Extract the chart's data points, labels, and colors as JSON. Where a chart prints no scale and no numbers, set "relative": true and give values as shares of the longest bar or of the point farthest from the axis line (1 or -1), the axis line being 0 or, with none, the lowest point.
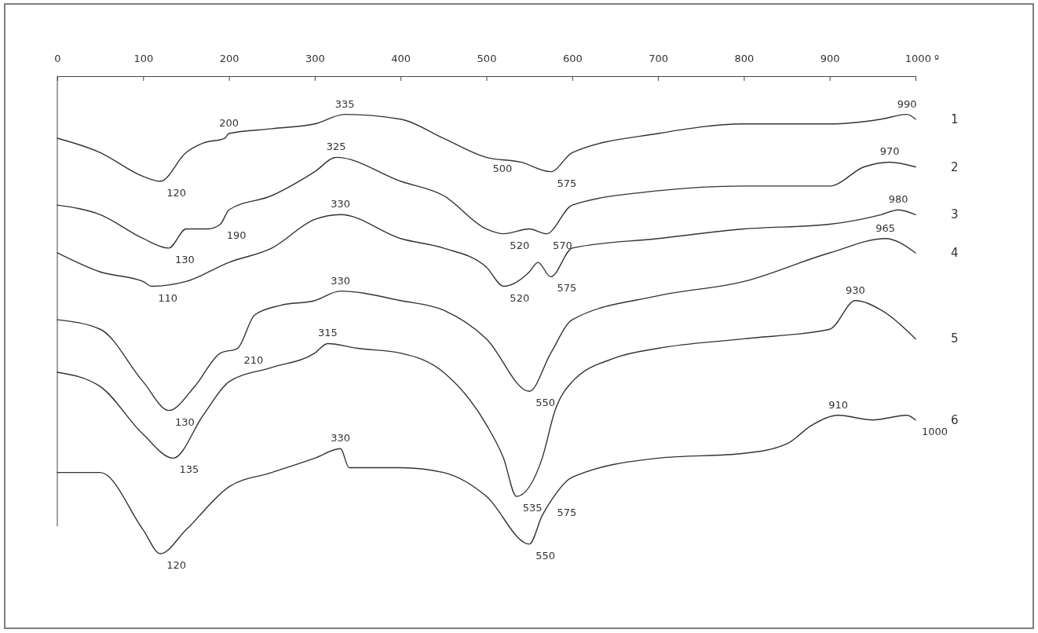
{
  "chart_data": {
    "type": "line",
    "relative": true,
    "xlim": [
      0,
      1000
    ],
    "xticks": [
      0,
      100,
      200,
      300,
      400,
      500,
      600,
      700,
      800,
      900,
      {
        "value": 1000,
        "label": "1000 º"
      }
    ],
    "series": [
      {
        "name": "1",
        "color": "#333333",
        "x": [
          0,
          50,
          100,
          120,
          150,
          170,
          195,
          200,
          250,
          300,
          335,
          400,
          450,
          500,
          540,
          575,
          600,
          700,
          800,
          900,
          960,
          990,
          1000
        ],
        "values": [
          -0.13,
          -0.16,
          -0.21,
          -0.22,
          -0.16,
          -0.14,
          -0.13,
          -0.12,
          -0.11,
          -0.1,
          -0.08,
          -0.09,
          -0.13,
          -0.17,
          -0.18,
          -0.2,
          -0.16,
          -0.12,
          -0.1,
          -0.1,
          -0.09,
          -0.08,
          -0.09
        ]
      },
      {
        "name": "2",
        "color": "#333333",
        "x": [
          0,
          50,
          100,
          130,
          150,
          175,
          190,
          200,
          250,
          300,
          325,
          400,
          450,
          500,
          520,
          550,
          570,
          600,
          700,
          800,
          900,
          940,
          970,
          1000
        ],
        "values": [
          -0.27,
          -0.29,
          -0.34,
          -0.36,
          -0.32,
          -0.32,
          -0.31,
          -0.28,
          -0.25,
          -0.2,
          -0.17,
          -0.22,
          -0.25,
          -0.32,
          -0.33,
          -0.32,
          -0.33,
          -0.27,
          -0.24,
          -0.23,
          -0.23,
          -0.19,
          -0.18,
          -0.19
        ]
      },
      {
        "name": "3",
        "color": "#333333",
        "x": [
          0,
          50,
          100,
          110,
          150,
          200,
          250,
          300,
          330,
          400,
          450,
          500,
          520,
          550,
          560,
          575,
          600,
          700,
          800,
          900,
          960,
          980,
          1000
        ],
        "values": [
          -0.37,
          -0.41,
          -0.43,
          -0.44,
          -0.43,
          -0.39,
          -0.36,
          -0.3,
          -0.29,
          -0.34,
          -0.36,
          -0.4,
          -0.44,
          -0.41,
          -0.39,
          -0.42,
          -0.36,
          -0.34,
          -0.32,
          -0.31,
          -0.29,
          -0.28,
          -0.29
        ]
      },
      {
        "name": "4",
        "color": "#333333",
        "x": [
          0,
          50,
          100,
          130,
          160,
          190,
          210,
          230,
          260,
          300,
          330,
          400,
          450,
          500,
          550,
          575,
          600,
          700,
          800,
          900,
          965,
          1000
        ],
        "values": [
          -0.51,
          -0.53,
          -0.64,
          -0.7,
          -0.65,
          -0.58,
          -0.57,
          -0.5,
          -0.48,
          -0.47,
          -0.45,
          -0.47,
          -0.49,
          -0.55,
          -0.66,
          -0.58,
          -0.51,
          -0.46,
          -0.43,
          -0.37,
          -0.34,
          -0.37
        ]
      },
      {
        "name": "5",
        "color": "#333333",
        "x": [
          0,
          50,
          100,
          135,
          170,
          200,
          250,
          300,
          315,
          350,
          400,
          450,
          500,
          520,
          535,
          565,
          580,
          600,
          650,
          700,
          800,
          900,
          930,
          960,
          1000
        ],
        "values": [
          -0.62,
          -0.65,
          -0.75,
          -0.8,
          -0.71,
          -0.64,
          -0.61,
          -0.58,
          -0.56,
          -0.57,
          -0.58,
          -0.62,
          -0.73,
          -0.8,
          -0.88,
          -0.8,
          -0.7,
          -0.64,
          -0.59,
          -0.57,
          -0.55,
          -0.53,
          -0.47,
          -0.49,
          -0.55
        ]
      },
      {
        "name": "6",
        "color": "#333333",
        "x": [
          0,
          50,
          100,
          120,
          150,
          200,
          250,
          300,
          330,
          340,
          370,
          400,
          450,
          500,
          550,
          565,
          575,
          600,
          700,
          800,
          850,
          880,
          910,
          950,
          990,
          1000
        ],
        "values": [
          -0.83,
          -0.83,
          -0.95,
          -1,
          -0.95,
          -0.86,
          -0.83,
          -0.8,
          -0.78,
          -0.82,
          -0.82,
          -0.82,
          -0.83,
          -0.88,
          -0.98,
          -0.92,
          -0.89,
          -0.84,
          -0.8,
          -0.79,
          -0.77,
          -0.73,
          -0.71,
          -0.72,
          -0.71,
          -0.72
        ]
      }
    ],
    "annotations": [
      {
        "text": "120",
        "x": 120,
        "y": -0.22
      },
      {
        "text": "200",
        "x": 200,
        "y": -0.12
      },
      {
        "text": "335",
        "x": 335,
        "y": -0.08
      },
      {
        "text": "500",
        "x": 500,
        "y": -0.17
      },
      {
        "text": "575",
        "x": 575,
        "y": -0.2
      },
      {
        "text": "990",
        "x": 990,
        "y": -0.08
      },
      {
        "text": "130",
        "x": 130,
        "y": -0.36
      },
      {
        "text": "190",
        "x": 190,
        "y": -0.31
      },
      {
        "text": "325",
        "x": 325,
        "y": -0.17
      },
      {
        "text": "520",
        "x": 520,
        "y": -0.33
      },
      {
        "text": "570",
        "x": 570,
        "y": -0.33
      },
      {
        "text": "970",
        "x": 970,
        "y": -0.18
      },
      {
        "text": "110",
        "x": 110,
        "y": -0.44
      },
      {
        "text": "330",
        "x": 330,
        "y": -0.29
      },
      {
        "text": "520",
        "x": 520,
        "y": -0.44
      },
      {
        "text": "575",
        "x": 575,
        "y": -0.42
      },
      {
        "text": "980",
        "x": 980,
        "y": -0.28
      },
      {
        "text": "130",
        "x": 130,
        "y": -0.7
      },
      {
        "text": "210",
        "x": 210,
        "y": -0.57
      },
      {
        "text": "330",
        "x": 330,
        "y": -0.45
      },
      {
        "text": "550",
        "x": 550,
        "y": -0.66
      },
      {
        "text": "965",
        "x": 965,
        "y": -0.34
      },
      {
        "text": "135",
        "x": 135,
        "y": -0.8
      },
      {
        "text": "315",
        "x": 315,
        "y": -0.56
      },
      {
        "text": "535",
        "x": 535,
        "y": -0.88
      },
      {
        "text": "930",
        "x": 930,
        "y": -0.47
      },
      {
        "text": "120",
        "x": 120,
        "y": -1
      },
      {
        "text": "330",
        "x": 330,
        "y": -0.78
      },
      {
        "text": "550",
        "x": 550,
        "y": -0.98
      },
      {
        "text": "575",
        "x": 575,
        "y": -0.89
      },
      {
        "text": "910",
        "x": 910,
        "y": -0.71
      },
      {
        "text": "1000",
        "x": 1000,
        "y": -0.72
      }
    ]
  }
}
